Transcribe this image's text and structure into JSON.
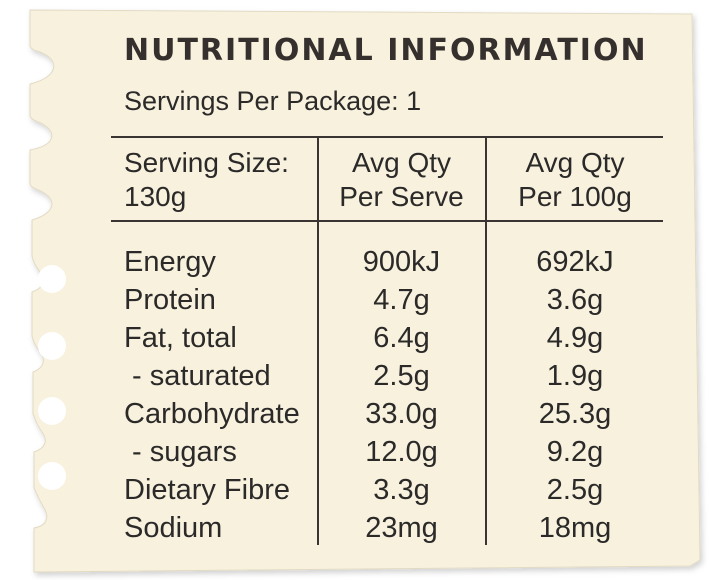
{
  "title": "NUTRITIONAL INFORMATION",
  "servings_per_package": "Servings Per Package: 1",
  "columns": {
    "c0_line1": "Serving Size:",
    "c0_line2": "130g",
    "c1_line1": "Avg Qty",
    "c1_line2": "Per Serve",
    "c2_line1": "Avg Qty",
    "c2_line2": "Per 100g"
  },
  "rows": [
    {
      "label": "Energy",
      "per_serve": "900kJ",
      "per_100g": "692kJ"
    },
    {
      "label": "Protein",
      "per_serve": "4.7g",
      "per_100g": "3.6g"
    },
    {
      "label": "Fat, total",
      "per_serve": "6.4g",
      "per_100g": "4.9g"
    },
    {
      "label": " - saturated",
      "per_serve": "2.5g",
      "per_100g": "1.9g"
    },
    {
      "label": "Carbohydrate",
      "per_serve": "33.0g",
      "per_100g": "25.3g"
    },
    {
      "label": " - sugars",
      "per_serve": "12.0g",
      "per_100g": "9.2g"
    },
    {
      "label": "Dietary Fibre",
      "per_serve": "3.3g",
      "per_100g": "2.5g"
    },
    {
      "label": "Sodium",
      "per_serve": "23mg",
      "per_100g": "18mg"
    }
  ],
  "colors": {
    "paper": "#f7f1de",
    "paper_edge": "#ddd5bd",
    "ink": "#2b2a29",
    "hole": "#ffffff"
  }
}
